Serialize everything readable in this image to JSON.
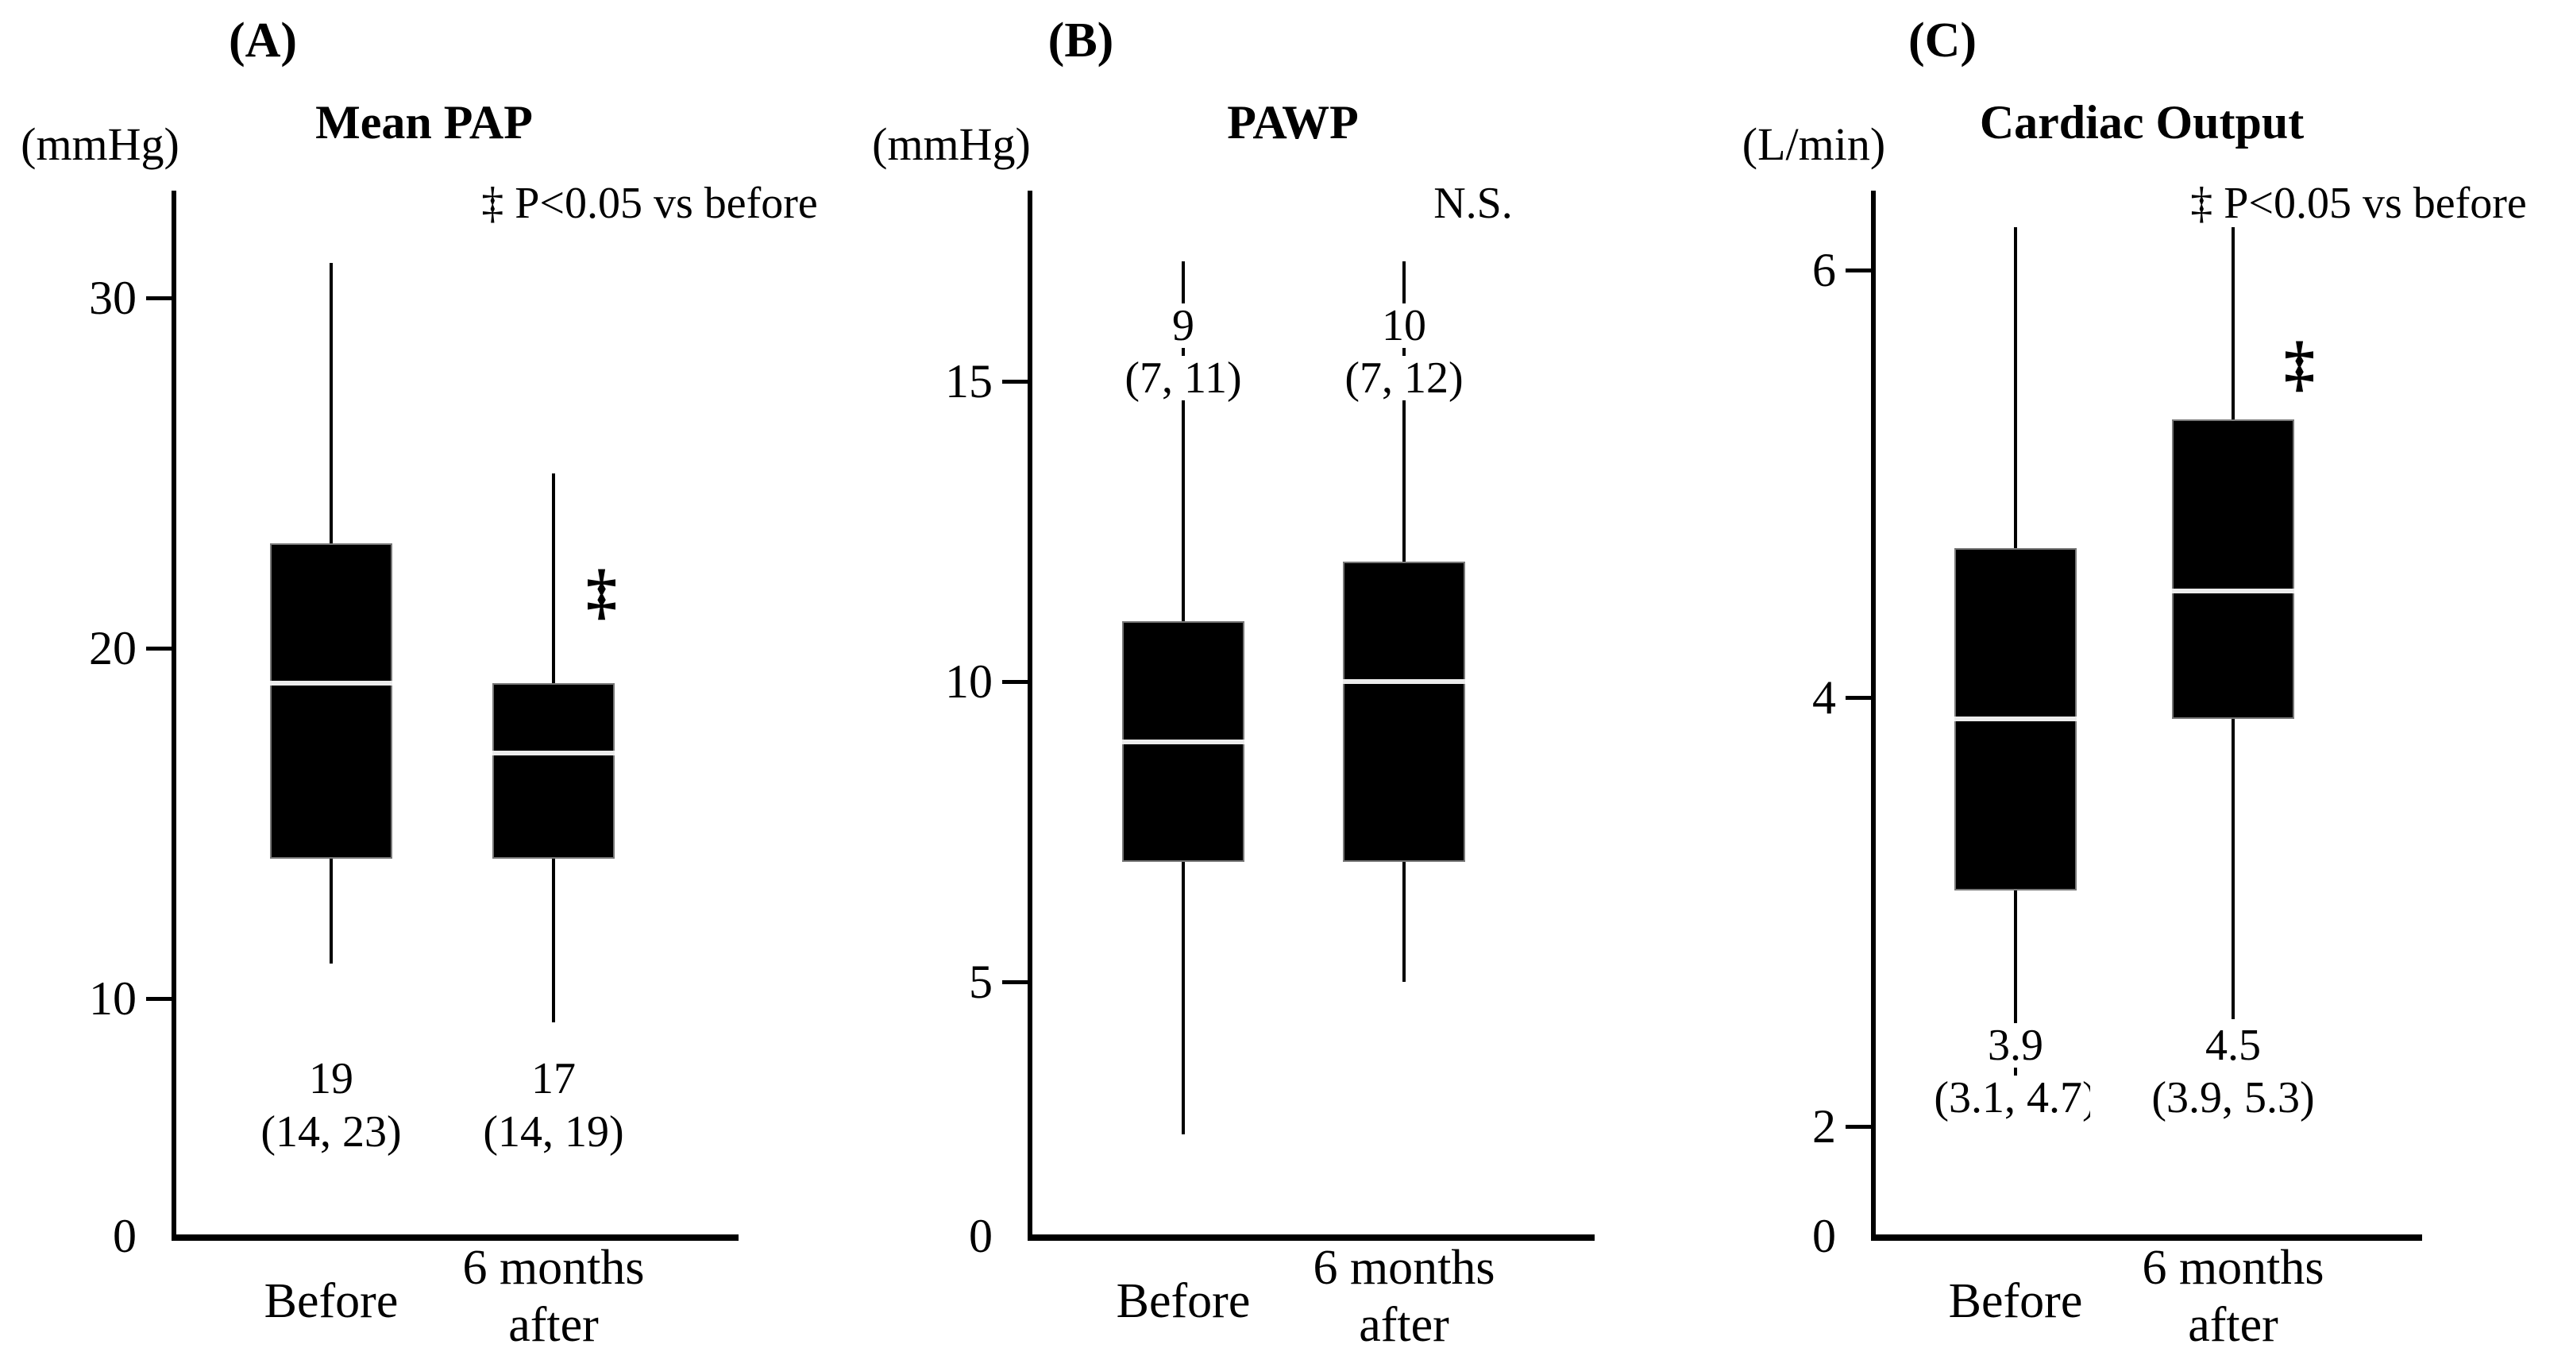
{
  "figure_colors": {
    "ink": "#000000",
    "box_fill": "#000000",
    "box_border": "#777777",
    "median_line": "#ececec",
    "background": "#ffffff"
  },
  "chart_data": [
    {
      "type": "box",
      "panel_letter": "(A)",
      "title": "Mean PAP",
      "y_axis_unit": "(mmHg)",
      "annotation": "‡ P<0.05 vs before",
      "grid": false,
      "legend_position": "none",
      "y_ticks": [
        0,
        10,
        20,
        30
      ],
      "ylim": [
        0,
        33
      ],
      "categories": [
        "Before",
        "6 months\nafter"
      ],
      "series": [
        {
          "category": "Before",
          "whisker_low": 11,
          "q1": 14,
          "median": 19,
          "q3": 23,
          "whisker_high": 31,
          "label": "19",
          "label_detail": "(14, 23)",
          "significance": null
        },
        {
          "category": "6 months after",
          "whisker_low": 9,
          "q1": 14,
          "median": 17,
          "q3": 19,
          "whisker_high": 25,
          "label": "17",
          "label_detail": "(14, 19)",
          "significance": "‡"
        }
      ]
    },
    {
      "type": "box",
      "panel_letter": "(B)",
      "title": "PAWP",
      "y_axis_unit": "(mmHg)",
      "annotation": "N.S.",
      "grid": false,
      "legend_position": "none",
      "y_ticks": [
        0,
        5,
        10,
        15
      ],
      "ylim": [
        0,
        18.5
      ],
      "categories": [
        "Before",
        "6 months\nafter"
      ],
      "series": [
        {
          "category": "Before",
          "whisker_low": 2,
          "q1": 7,
          "median": 9,
          "q3": 11,
          "whisker_high": 17,
          "label": "9",
          "label_detail": "(7, 11)",
          "significance": null
        },
        {
          "category": "6 months after",
          "whisker_low": 5,
          "q1": 7,
          "median": 10,
          "q3": 12,
          "whisker_high": 17,
          "label": "10",
          "label_detail": "(7, 12)",
          "significance": null
        }
      ]
    },
    {
      "type": "box",
      "panel_letter": "(C)",
      "title": "Cardiac Output",
      "y_axis_unit": "(L/min)",
      "annotation": "‡ P<0.05 vs before",
      "grid": false,
      "legend_position": "none",
      "y_ticks": [
        0,
        2,
        4,
        6
      ],
      "ylim": [
        0,
        6.4
      ],
      "categories": [
        "Before",
        "6 months\nafter"
      ],
      "series": [
        {
          "category": "Before",
          "whisker_low": 2.2,
          "q1": 3.1,
          "median": 3.9,
          "q3": 4.7,
          "whisker_high": 6.2,
          "label": "3.9",
          "label_detail": "(3.1, 4.7)",
          "significance": null
        },
        {
          "category": "6 months after",
          "whisker_low": 2.5,
          "q1": 3.9,
          "median": 4.5,
          "q3": 5.3,
          "whisker_high": 6.2,
          "label": "4.5",
          "label_detail": "(3.9, 5.3)",
          "significance": "‡"
        }
      ]
    }
  ]
}
